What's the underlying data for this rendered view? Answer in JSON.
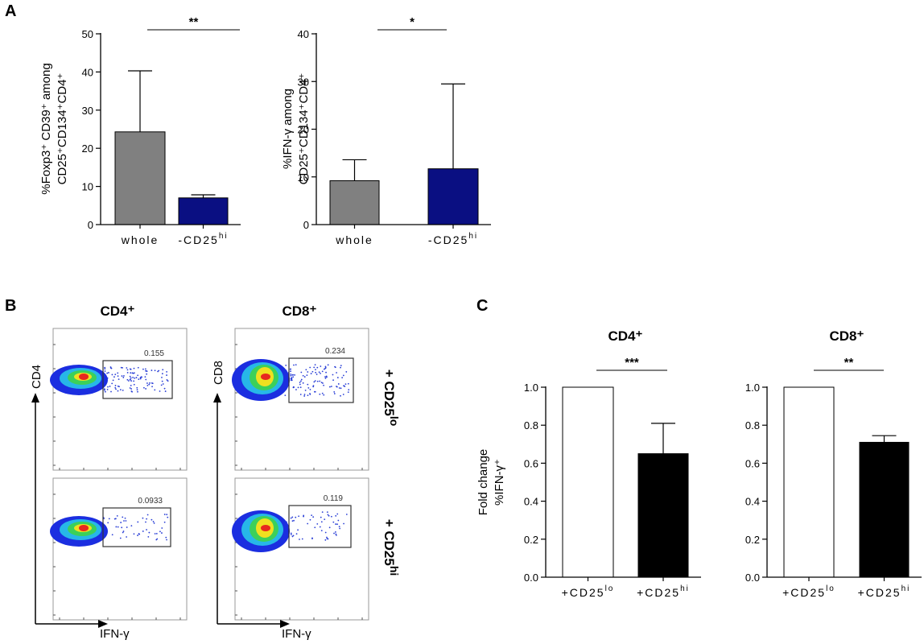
{
  "panel_letters": [
    "A",
    "B",
    "C"
  ],
  "chart_data": [
    {
      "id": "A1",
      "type": "bar",
      "categories": [
        "whole",
        "-CD25hi"
      ],
      "values": [
        24.3,
        7.0
      ],
      "errors": [
        16.0,
        0.8
      ],
      "colors": [
        "#808080",
        "#0a0f82"
      ],
      "ylim": [
        0,
        50
      ],
      "yticks": [
        0,
        10,
        20,
        30,
        40,
        50
      ],
      "ylabel_line1": "%Foxp3⁺ CD39⁺ among",
      "ylabel_line2": "CD25⁺CD134⁺CD4⁺",
      "significance": "**"
    },
    {
      "id": "A2",
      "type": "bar",
      "categories": [
        "whole",
        "-CD25hi"
      ],
      "values": [
        9.2,
        11.7
      ],
      "errors": [
        4.4,
        17.8
      ],
      "colors": [
        "#808080",
        "#0a0f82"
      ],
      "ylim": [
        0,
        40
      ],
      "yticks": [
        0,
        10,
        20,
        30,
        40
      ],
      "ylabel_line1": "%IFN-γ among",
      "ylabel_line2": "CD25⁺CD134⁺CD4⁺",
      "significance": "*"
    },
    {
      "id": "C1",
      "type": "bar",
      "title": "CD4⁺",
      "categories": [
        "+CD25lo",
        "+CD25hi"
      ],
      "values": [
        1.0,
        0.65
      ],
      "errors": [
        0,
        0.16
      ],
      "colors": [
        "#ffffff",
        "#000000"
      ],
      "ylim": [
        0,
        1.0
      ],
      "yticks": [
        0.0,
        0.2,
        0.4,
        0.6,
        0.8,
        1.0
      ],
      "ylabel_line1": "Fold change",
      "ylabel_line2": "%IFN-γ⁺",
      "significance": "***"
    },
    {
      "id": "C2",
      "type": "bar",
      "title": "CD8⁺",
      "categories": [
        "+CD25lo",
        "+CD25hi"
      ],
      "values": [
        1.0,
        0.71
      ],
      "errors": [
        0,
        0.035
      ],
      "colors": [
        "#ffffff",
        "#000000"
      ],
      "ylim": [
        0,
        1.0
      ],
      "yticks": [
        0.0,
        0.2,
        0.4,
        0.6,
        0.8,
        1.0
      ],
      "significance": "**"
    }
  ],
  "cat_labels": {
    "whole": "whole",
    "-CD25hi": [
      "-CD25",
      "hi"
    ],
    "+CD25lo": [
      "+CD25",
      "lo"
    ],
    "+CD25hi": [
      "+CD25",
      "hi"
    ]
  },
  "flow": {
    "col_titles": [
      "CD4⁺",
      "CD8⁺"
    ],
    "row_labels": [
      "+ CD25lo",
      "+ CD25hi"
    ],
    "row_label_parts": [
      [
        "+ CD25",
        "lo"
      ],
      [
        "+ CD25",
        "hi"
      ]
    ],
    "y_axis_labels": [
      "CD4",
      "CD8"
    ],
    "x_axis_label": "IFN-γ",
    "gate_values": [
      [
        "0.155",
        "0.234"
      ],
      [
        "0.0933",
        "0.119"
      ]
    ]
  }
}
